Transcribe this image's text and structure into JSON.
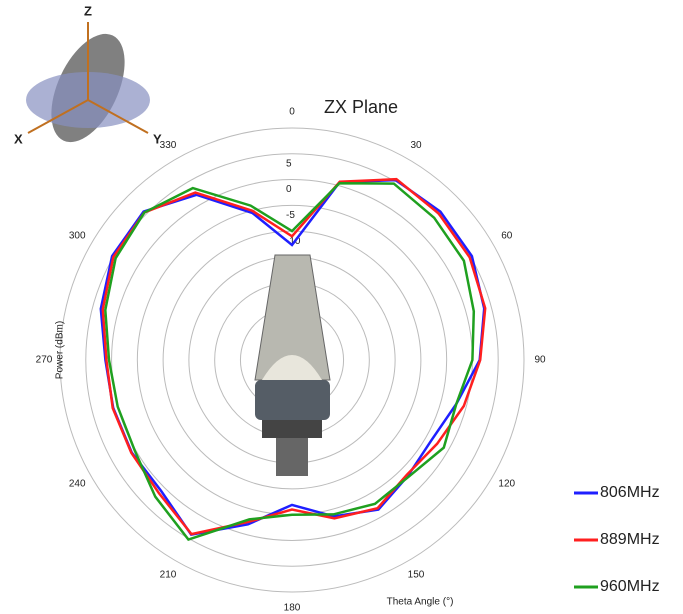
{
  "chart_data": {
    "type": "polar",
    "title": "ZX Plane",
    "theta_label": "Theta  Angle (°)",
    "r_label": "Power (dBm)",
    "theta": [
      0,
      15,
      30,
      45,
      60,
      75,
      90,
      105,
      120,
      135,
      150,
      165,
      180,
      195,
      210,
      225,
      240,
      255,
      270,
      285,
      300,
      315,
      330,
      345
    ],
    "thetaticks": [
      0,
      30,
      60,
      90,
      120,
      150,
      180,
      210,
      240,
      270,
      300,
      330
    ],
    "direction": "clockwise",
    "zero_location": "top",
    "rlim": [
      -35,
      10
    ],
    "rticks": [
      5,
      0,
      -5,
      -10
    ],
    "rgrid": [
      -30,
      -25,
      -20,
      -15,
      -10,
      -5,
      0,
      5,
      10
    ],
    "legend": "right-bottom",
    "series": [
      {
        "name": "806MHz",
        "color": "#1f1fff",
        "values": [
          -12.7,
          0.7,
          5.3,
          5.7,
          5.3,
          3.6,
          1.4,
          -2,
          -3.8,
          -3.2,
          -1.5,
          -3.6,
          -6.9,
          -2,
          4.1,
          0.9,
          0.9,
          0.9,
          1.2,
          3.4,
          5.3,
          5.7,
          2,
          -5.5
        ]
      },
      {
        "name": "889MHz",
        "color": "#ff1f1f",
        "values": [
          -11,
          0.8,
          5.5,
          5.2,
          4.8,
          3.8,
          1.5,
          -0.5,
          -2.5,
          -3.5,
          -1.8,
          -3.2,
          -6,
          -2.5,
          4,
          1.5,
          1,
          1,
          1,
          3,
          5,
          5.5,
          2.5,
          -5
        ]
      },
      {
        "name": "960MHz",
        "color": "#1fa01f",
        "values": [
          -10,
          0.5,
          4.5,
          4,
          3.5,
          1.5,
          0,
          -2,
          -1,
          -3,
          -2.8,
          -4,
          -5,
          -3,
          5.2,
          2.5,
          0.2,
          0,
          0.5,
          2.5,
          4.5,
          5.5,
          3.5,
          -4
        ]
      }
    ]
  }
}
